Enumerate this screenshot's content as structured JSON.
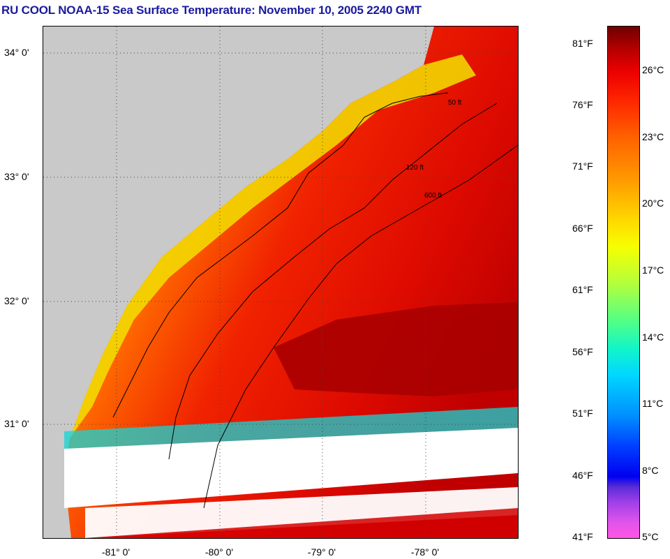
{
  "title": "RU COOL  NOAA-15  Sea Surface Temperature:  November 10, 2005 2240 GMT",
  "map": {
    "lat_labels": [
      "34° 0'",
      "33° 0'",
      "32° 0'",
      "31° 0'"
    ],
    "lon_labels": [
      "-81° 0'",
      "-80° 0'",
      "-79° 0'",
      "-78° 0'"
    ],
    "depth_contour_labels": [
      "50 ft",
      "120 ft",
      "600 ft"
    ],
    "colors": {
      "land": "#c9c9c9",
      "nearshore_warm": "#f5e400",
      "mid_shelf": "#ff7a00",
      "offshore": "#e60d00",
      "gulf_stream": "#a80000",
      "cloud": "#ffffff",
      "cool_edge": "#13d6d6"
    }
  },
  "scale": {
    "fahrenheit": [
      "81°F",
      "76°F",
      "71°F",
      "66°F",
      "61°F",
      "56°F",
      "51°F",
      "46°F",
      "41°F"
    ],
    "celsius": [
      "26°C",
      "23°C",
      "20°C",
      "17°C",
      "14°C",
      "11°C",
      "8°C",
      "5°C"
    ]
  }
}
